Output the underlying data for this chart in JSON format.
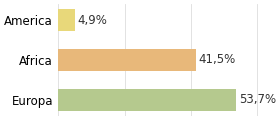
{
  "categories": [
    "America",
    "Africa",
    "Europa"
  ],
  "values": [
    4.9,
    41.5,
    53.7
  ],
  "labels": [
    "4,9%",
    "41,5%",
    "53,7%"
  ],
  "bar_colors": [
    "#e8d87a",
    "#e8b87a",
    "#b5c98e"
  ],
  "background_color": "#ffffff",
  "xlim": [
    0,
    65
  ],
  "bar_height": 0.55,
  "label_fontsize": 8.5,
  "tick_fontsize": 8.5
}
